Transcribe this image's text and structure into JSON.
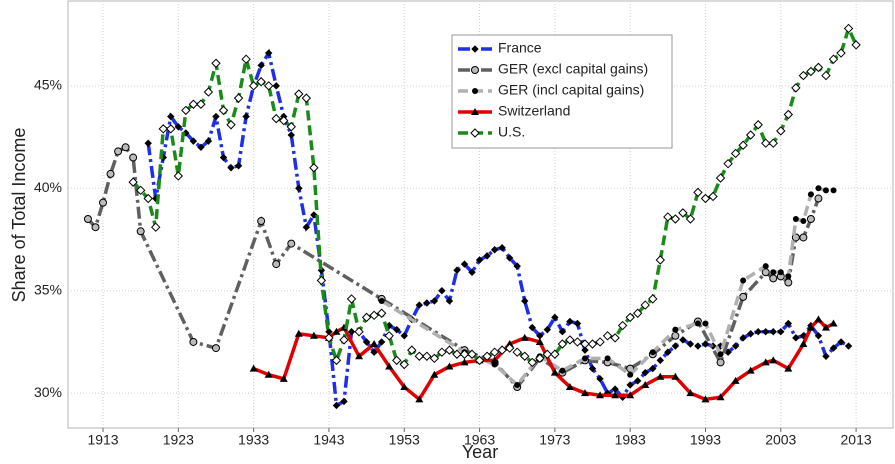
{
  "chart_data": {
    "type": "line",
    "xlabel": "Year",
    "ylabel": "Share of Total Income",
    "xlim": [
      1908.35,
      2017.9
    ],
    "ylim": [
      28.3,
      49.14
    ],
    "xticks": [
      1913,
      1923,
      1933,
      1943,
      1953,
      1963,
      1973,
      1983,
      1993,
      2003,
      2013
    ],
    "yticks": [
      {
        "value": 30,
        "label": "30%"
      },
      {
        "value": 35,
        "label": "35%"
      },
      {
        "value": 40,
        "label": "40%"
      },
      {
        "value": 45,
        "label": "45%"
      }
    ],
    "grid": true,
    "legend": "upper center",
    "series": [
      {
        "name": "France",
        "color": "#1f2fe8",
        "dash": "dashdot",
        "marker": "diamond",
        "x": [
          1919,
          1920,
          1921,
          1922,
          1923,
          1924,
          1925,
          1926,
          1927,
          1928,
          1929,
          1930,
          1931,
          1932,
          1933,
          1934,
          1935,
          1936,
          1937,
          1938,
          1939,
          1940,
          1941,
          1942,
          1943,
          1944,
          1945,
          1946,
          1947,
          1948,
          1949,
          1950,
          1951,
          1952,
          1953,
          1954,
          1955,
          1956,
          1957,
          1958,
          1959,
          1960,
          1961,
          1962,
          1963,
          1964,
          1965,
          1966,
          1967,
          1968,
          1969,
          1970,
          1971,
          1972,
          1973,
          1974,
          1975,
          1976,
          1977,
          1978,
          1979,
          1980,
          1981,
          1982,
          1983,
          1984,
          1985,
          1986,
          1987,
          1988,
          1989,
          1990,
          1991,
          1992,
          1993,
          1994,
          1995,
          1996,
          1997,
          1998,
          1999,
          2000,
          2001,
          2002,
          2003,
          2004,
          2005,
          2006,
          2007,
          2008,
          2009,
          2010,
          2011,
          2012
        ],
        "values": [
          42.2,
          39.5,
          41.5,
          43.5,
          43.0,
          42.7,
          42.3,
          42.0,
          42.3,
          43.5,
          41.5,
          41.0,
          41.1,
          43.5,
          45.0,
          46.0,
          46.6,
          45.0,
          43.5,
          42.6,
          40.0,
          38.1,
          38.7,
          36.0,
          33.0,
          29.4,
          29.6,
          33.0,
          33.0,
          32.5,
          32.0,
          32.5,
          33.3,
          33.1,
          32.8,
          33.6,
          34.3,
          34.4,
          34.5,
          35.0,
          34.5,
          36.0,
          36.3,
          35.9,
          36.5,
          36.7,
          37.0,
          37.1,
          36.6,
          36.2,
          34.5,
          33.2,
          32.8,
          33.1,
          33.7,
          33.0,
          33.5,
          33.4,
          32.1,
          31.2,
          30.7,
          30.0,
          30.2,
          29.8,
          30.4,
          30.6,
          31.0,
          31.2,
          31.6,
          32.0,
          32.3,
          32.6,
          32.4,
          32.3,
          32.4,
          32.3,
          32.3,
          32.0,
          32.3,
          32.7,
          32.9,
          33.0,
          33.0,
          33.0,
          33.0,
          33.4,
          32.7,
          32.8,
          33.3,
          32.8,
          31.8,
          32.2,
          32.5,
          32.3
        ]
      },
      {
        "name": "GER (excl capital gains)",
        "color": "#606060",
        "dash": "dashdot",
        "marker": "circle",
        "x": [
          1911,
          1912,
          1913,
          1914,
          1915,
          1916,
          1917,
          1918,
          1925,
          1928,
          1934,
          1936,
          1938,
          1950,
          1961,
          1965,
          1968,
          1971,
          1974,
          1977,
          1980,
          1983,
          1986,
          1989,
          1992,
          1995,
          1998,
          2001,
          2002,
          2003,
          2004,
          2005,
          2006,
          2007,
          2008
        ],
        "values": [
          38.5,
          38.1,
          39.3,
          40.7,
          41.8,
          42.0,
          41.5,
          37.9,
          32.5,
          32.2,
          38.4,
          36.3,
          37.3,
          34.6,
          32.1,
          31.5,
          30.3,
          31.7,
          31.0,
          31.6,
          31.5,
          31.2,
          31.9,
          32.8,
          33.5,
          31.5,
          34.7,
          35.9,
          35.6,
          35.7,
          35.4,
          37.6,
          37.6,
          38.5,
          39.5
        ]
      },
      {
        "name": "GER (incl capital gains)",
        "color": "#b0b0b0",
        "dash": "dashed",
        "marker": "dot",
        "x": [
          1950,
          1961,
          1965,
          1968,
          1971,
          1974,
          1977,
          1980,
          1983,
          1986,
          1989,
          1992,
          1993,
          1995,
          1998,
          2001,
          2002,
          2003,
          2004,
          2005,
          2006,
          2007,
          2008,
          2009,
          2010
        ],
        "values": [
          34.5,
          32.0,
          31.4,
          30.4,
          31.8,
          31.1,
          31.7,
          31.7,
          30.9,
          32.0,
          33.1,
          33.4,
          33.4,
          31.9,
          35.5,
          36.2,
          35.9,
          35.9,
          35.7,
          38.5,
          38.4,
          39.7,
          40.0,
          39.9,
          39.9
        ]
      },
      {
        "name": "Switzerland",
        "color": "#e00000",
        "dash": "solid",
        "marker": "triangle",
        "x": [
          1933,
          1935,
          1937,
          1939,
          1941,
          1943,
          1944,
          1945,
          1947,
          1949,
          1951,
          1953,
          1955,
          1957,
          1959,
          1961,
          1963,
          1965,
          1967,
          1969,
          1971,
          1973,
          1975,
          1977,
          1979,
          1981,
          1983,
          1985,
          1987,
          1989,
          1991,
          1993,
          1995,
          1997,
          1999,
          2001,
          2002,
          2004,
          2006,
          2007,
          2008,
          2009,
          2010
        ],
        "values": [
          31.2,
          30.9,
          30.7,
          32.9,
          32.8,
          32.7,
          33.0,
          33.2,
          31.8,
          32.4,
          31.3,
          30.3,
          29.7,
          30.9,
          31.3,
          31.5,
          31.6,
          31.6,
          32.4,
          32.7,
          32.5,
          31.0,
          30.3,
          30.0,
          29.9,
          29.9,
          29.9,
          30.4,
          30.8,
          30.8,
          30.0,
          29.7,
          29.8,
          30.6,
          31.1,
          31.5,
          31.6,
          31.2,
          32.4,
          33.2,
          33.6,
          33.2,
          33.4
        ]
      },
      {
        "name": "U.S.",
        "color": "#1a8a1a",
        "dash": "dashed",
        "marker": "diamond-open",
        "x": [
          1917,
          1918,
          1919,
          1920,
          1921,
          1922,
          1923,
          1924,
          1925,
          1926,
          1927,
          1928,
          1929,
          1930,
          1931,
          1932,
          1933,
          1934,
          1935,
          1936,
          1937,
          1938,
          1939,
          1940,
          1941,
          1942,
          1943,
          1944,
          1945,
          1946,
          1947,
          1948,
          1949,
          1950,
          1951,
          1952,
          1953,
          1954,
          1955,
          1956,
          1957,
          1958,
          1959,
          1960,
          1961,
          1962,
          1963,
          1964,
          1965,
          1966,
          1967,
          1968,
          1969,
          1970,
          1971,
          1972,
          1973,
          1974,
          1975,
          1976,
          1977,
          1978,
          1979,
          1980,
          1981,
          1982,
          1983,
          1984,
          1985,
          1986,
          1987,
          1988,
          1989,
          1990,
          1991,
          1992,
          1993,
          1994,
          1995,
          1996,
          1997,
          1998,
          1999,
          2000,
          2001,
          2002,
          2003,
          2004,
          2005,
          2006,
          2007,
          2008,
          2009,
          2010,
          2011,
          2012,
          2013
        ],
        "values": [
          40.3,
          39.9,
          39.5,
          38.1,
          42.9,
          42.9,
          40.6,
          43.8,
          44.1,
          44.1,
          44.7,
          46.1,
          43.8,
          43.1,
          44.4,
          46.3,
          45.0,
          45.2,
          45.0,
          43.4,
          43.3,
          43.0,
          44.6,
          44.4,
          41.0,
          35.5,
          32.7,
          31.6,
          32.6,
          34.6,
          33.0,
          33.7,
          33.8,
          33.9,
          32.8,
          31.6,
          31.4,
          32.1,
          31.8,
          31.8,
          31.7,
          32.0,
          32.1,
          31.9,
          31.9,
          31.9,
          31.6,
          31.8,
          32.0,
          32.1,
          32.2,
          32.0,
          31.8,
          31.5,
          31.7,
          31.9,
          31.9,
          32.4,
          32.6,
          32.5,
          32.4,
          32.4,
          32.5,
          32.8,
          32.7,
          33.3,
          33.7,
          33.9,
          34.3,
          34.6,
          36.5,
          38.6,
          38.5,
          38.8,
          38.5,
          39.8,
          39.5,
          39.6,
          40.5,
          41.2,
          41.7,
          42.1,
          42.6,
          43.1,
          42.2,
          42.2,
          42.8,
          43.6,
          44.9,
          45.5,
          45.7,
          45.9,
          45.5,
          46.3,
          46.6,
          47.8,
          47.0
        ]
      }
    ]
  }
}
